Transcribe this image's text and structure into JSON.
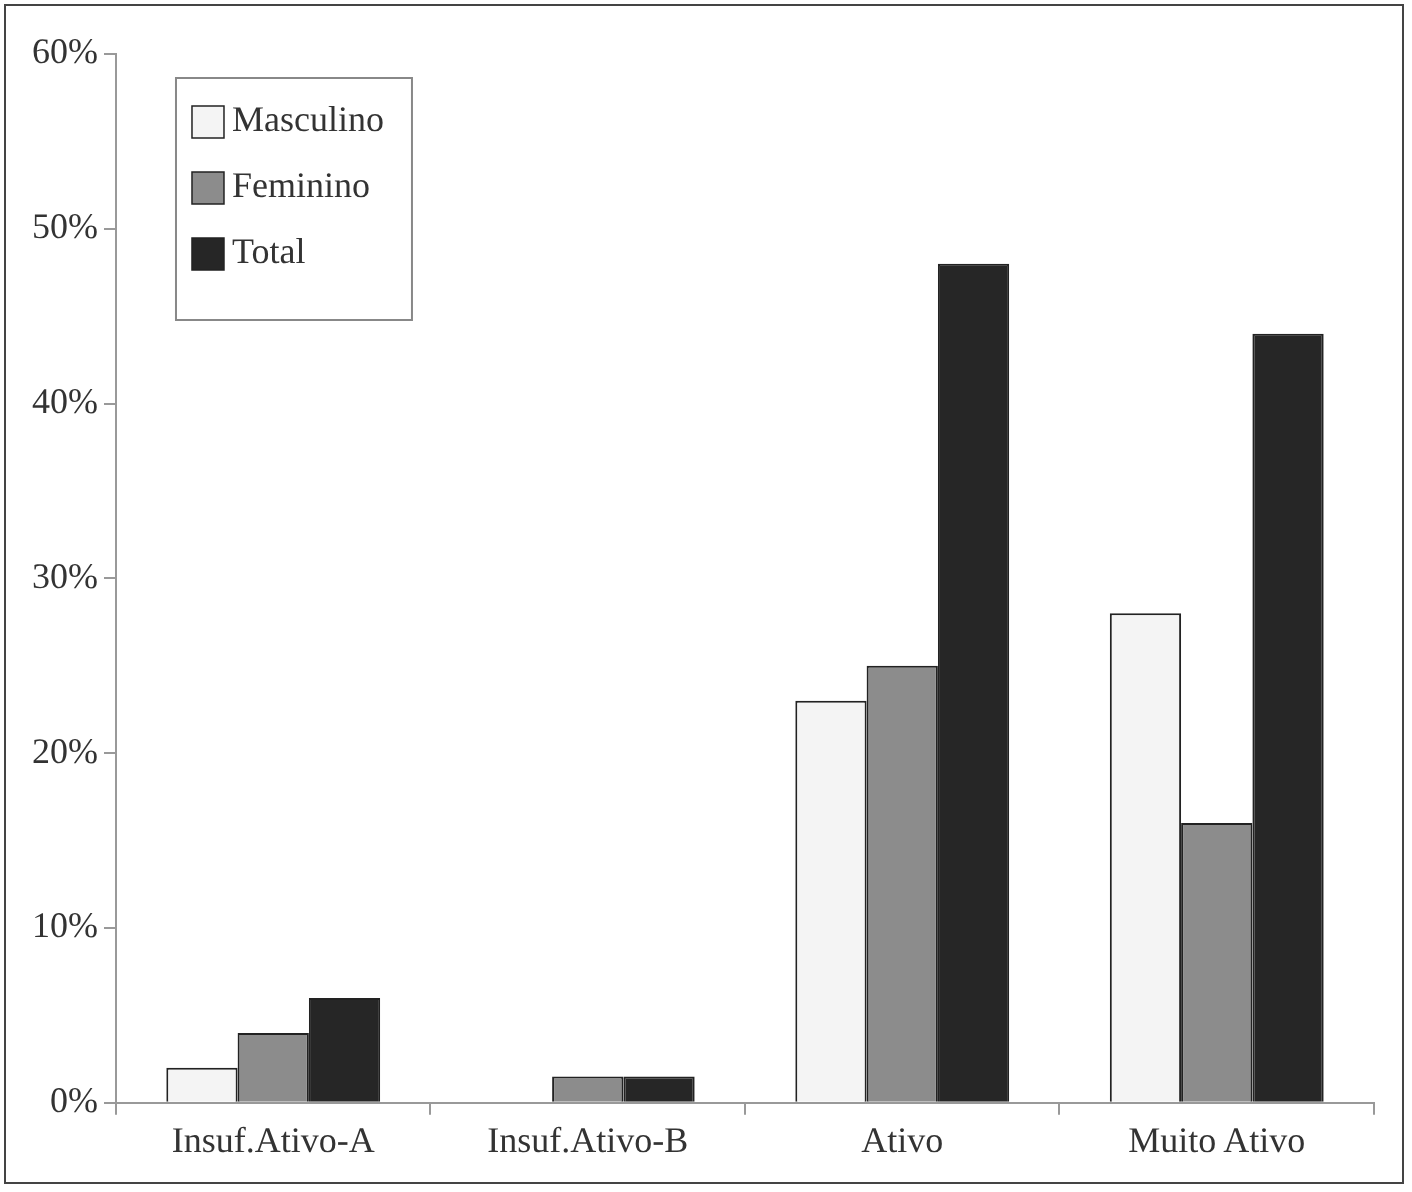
{
  "chart_data": {
    "type": "bar",
    "categories": [
      "Insuf.Ativo-A",
      "Insuf.Ativo-B",
      "Ativo",
      "Muito Ativo"
    ],
    "series": [
      {
        "name": "Masculino",
        "color": "#f4f4f4",
        "values": [
          2,
          0,
          23,
          28
        ]
      },
      {
        "name": "Feminino",
        "color": "#8c8c8c",
        "values": [
          4,
          1.5,
          25,
          16
        ]
      },
      {
        "name": "Total",
        "color": "#262626",
        "values": [
          6,
          1.5,
          48,
          44
        ]
      }
    ],
    "ylim": [
      0,
      60
    ],
    "yticks": [
      {
        "value": 0,
        "label": "0%"
      },
      {
        "value": 10,
        "label": "10%"
      },
      {
        "value": 20,
        "label": "20%"
      },
      {
        "value": 30,
        "label": "30%"
      },
      {
        "value": 40,
        "label": "40%"
      },
      {
        "value": 50,
        "label": "50%"
      },
      {
        "value": 60,
        "label": "60%"
      }
    ],
    "grid": false,
    "legend": "top left"
  }
}
